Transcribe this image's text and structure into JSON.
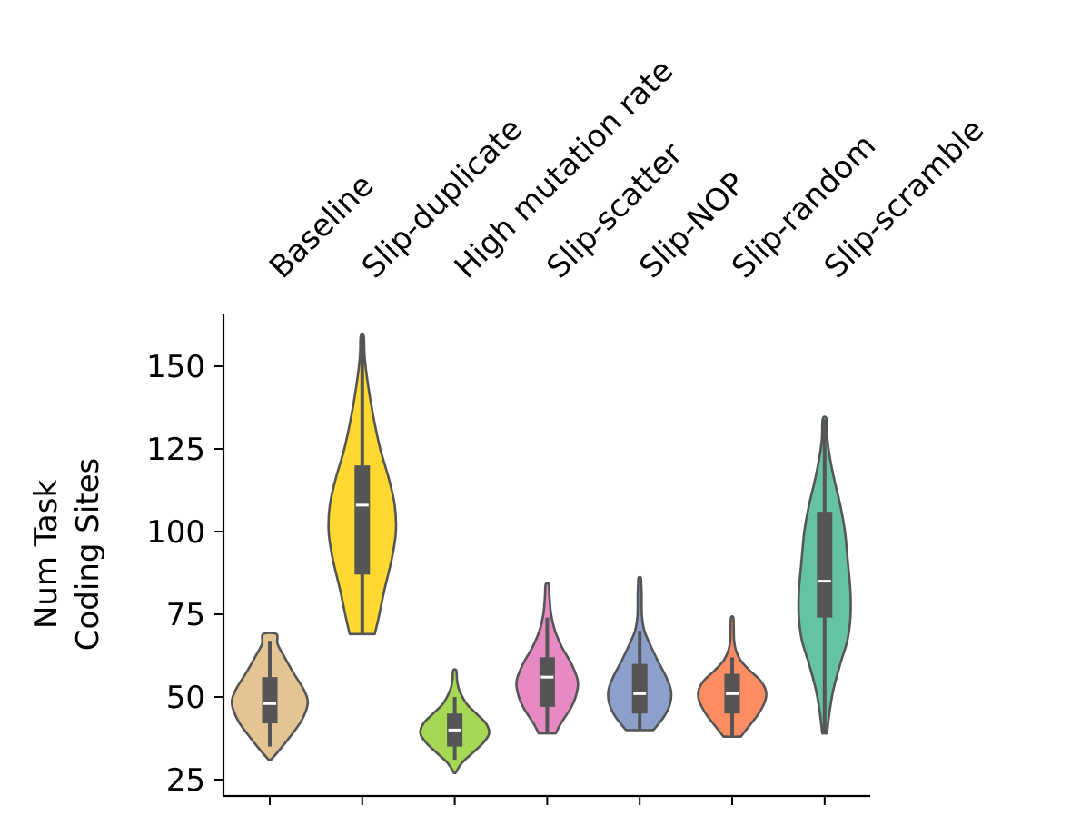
{
  "chart_data": {
    "type": "violin",
    "title": "",
    "xlabel": "",
    "ylabel_lines": [
      "Num Task",
      "Coding Sites"
    ],
    "ylim": [
      20,
      165
    ],
    "yticks": [
      25,
      50,
      75,
      100,
      125,
      150
    ],
    "grid": false,
    "legend": "none",
    "categories": [
      "Baseline",
      "Slip-duplicate",
      "High mutation rate",
      "Slip-scatter",
      "Slip-NOP",
      "Slip-random",
      "Slip-scramble"
    ],
    "colors": [
      "#e5c494",
      "#ffd92f",
      "#a6d854",
      "#e78ac3",
      "#8da0cb",
      "#fc8d62",
      "#66c2a5"
    ],
    "stats": [
      {
        "min": 31,
        "max": 69,
        "q1": 42,
        "median": 48,
        "q3": 56,
        "whisker_low": 35,
        "whisker_high": 67
      },
      {
        "min": 69,
        "max": 159,
        "q1": 87,
        "median": 108,
        "q3": 120,
        "whisker_low": 69,
        "whisker_high": 159
      },
      {
        "min": 27,
        "max": 58,
        "q1": 35,
        "median": 40,
        "q3": 45,
        "whisker_low": 31,
        "whisker_high": 50
      },
      {
        "min": 39,
        "max": 84,
        "q1": 47,
        "median": 56,
        "q3": 62,
        "whisker_low": 39,
        "whisker_high": 74
      },
      {
        "min": 40,
        "max": 86,
        "q1": 45,
        "median": 51,
        "q3": 60,
        "whisker_low": 40,
        "whisker_high": 70
      },
      {
        "min": 38,
        "max": 74,
        "q1": 45,
        "median": 51,
        "q3": 57,
        "whisker_low": 38,
        "whisker_high": 62
      },
      {
        "min": 39,
        "max": 134,
        "q1": 74,
        "median": 85,
        "q3": 106,
        "whisker_low": 39,
        "whisker_high": 134
      }
    ],
    "density_profiles": [
      [
        [
          31,
          0.03
        ],
        [
          34,
          0.25
        ],
        [
          38,
          0.52
        ],
        [
          43,
          0.82
        ],
        [
          48,
          0.97
        ],
        [
          52,
          0.88
        ],
        [
          57,
          0.62
        ],
        [
          62,
          0.38
        ],
        [
          66,
          0.2
        ],
        [
          69,
          0.17
        ]
      ],
      [
        [
          69,
          0.32
        ],
        [
          74,
          0.42
        ],
        [
          82,
          0.56
        ],
        [
          92,
          0.76
        ],
        [
          100,
          0.86
        ],
        [
          108,
          0.83
        ],
        [
          116,
          0.68
        ],
        [
          125,
          0.46
        ],
        [
          135,
          0.28
        ],
        [
          145,
          0.14
        ],
        [
          153,
          0.06
        ],
        [
          159,
          0.04
        ]
      ],
      [
        [
          27,
          0.02
        ],
        [
          30,
          0.18
        ],
        [
          33,
          0.45
        ],
        [
          36,
          0.72
        ],
        [
          39,
          0.88
        ],
        [
          42,
          0.8
        ],
        [
          45,
          0.55
        ],
        [
          48,
          0.3
        ],
        [
          52,
          0.12
        ],
        [
          55,
          0.06
        ],
        [
          58,
          0.04
        ]
      ],
      [
        [
          39,
          0.22
        ],
        [
          42,
          0.35
        ],
        [
          47,
          0.62
        ],
        [
          51,
          0.75
        ],
        [
          55,
          0.78
        ],
        [
          60,
          0.62
        ],
        [
          65,
          0.38
        ],
        [
          70,
          0.2
        ],
        [
          75,
          0.1
        ],
        [
          80,
          0.06
        ],
        [
          84,
          0.04
        ]
      ],
      [
        [
          40,
          0.35
        ],
        [
          44,
          0.62
        ],
        [
          48,
          0.78
        ],
        [
          52,
          0.8
        ],
        [
          56,
          0.68
        ],
        [
          61,
          0.46
        ],
        [
          66,
          0.26
        ],
        [
          70,
          0.12
        ],
        [
          74,
          0.06
        ],
        [
          78,
          0.05
        ],
        [
          81,
          0.05
        ],
        [
          84,
          0.04
        ],
        [
          86,
          0.03
        ]
      ],
      [
        [
          38,
          0.22
        ],
        [
          41,
          0.42
        ],
        [
          45,
          0.68
        ],
        [
          49,
          0.85
        ],
        [
          52,
          0.86
        ],
        [
          55,
          0.72
        ],
        [
          58,
          0.45
        ],
        [
          61,
          0.22
        ],
        [
          64,
          0.1
        ],
        [
          67,
          0.05
        ],
        [
          71,
          0.04
        ],
        [
          74,
          0.03
        ]
      ],
      [
        [
          39,
          0.06
        ],
        [
          45,
          0.12
        ],
        [
          52,
          0.22
        ],
        [
          60,
          0.4
        ],
        [
          67,
          0.58
        ],
        [
          74,
          0.66
        ],
        [
          82,
          0.66
        ],
        [
          90,
          0.6
        ],
        [
          100,
          0.52
        ],
        [
          108,
          0.4
        ],
        [
          115,
          0.26
        ],
        [
          122,
          0.14
        ],
        [
          128,
          0.07
        ],
        [
          134,
          0.05
        ]
      ]
    ]
  }
}
